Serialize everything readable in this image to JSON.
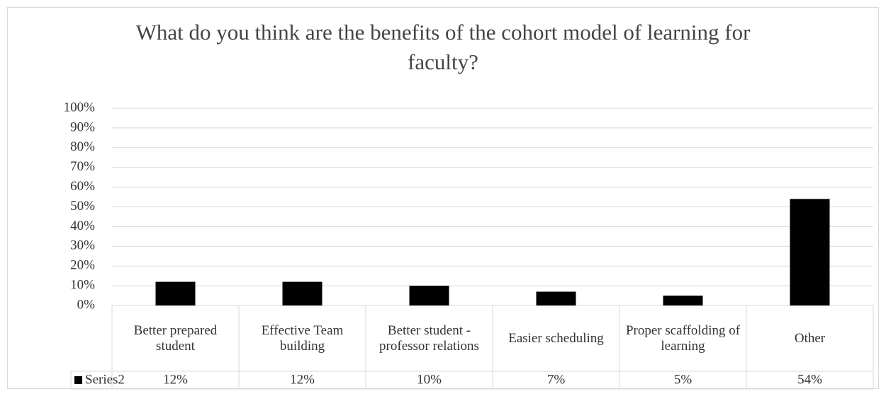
{
  "chart_data": {
    "type": "bar",
    "title": "What do you think are the benefits of the cohort model of learning for faculty?",
    "categories": [
      "Better prepared student",
      "Effective Team building",
      "Better student - professor relations",
      "Easier scheduling",
      "Proper scaffolding of learning",
      "Other"
    ],
    "series": [
      {
        "name": "Series2",
        "color": "#000000",
        "values": [
          12,
          12,
          10,
          7,
          5,
          54
        ],
        "value_labels": [
          "12%",
          "12%",
          "10%",
          "7%",
          "5%",
          "54%"
        ]
      }
    ],
    "ylim": [
      0,
      100
    ],
    "yticks": [
      {
        "value": 0,
        "label": "0%"
      },
      {
        "value": 10,
        "label": "10%"
      },
      {
        "value": 20,
        "label": "20%"
      },
      {
        "value": 30,
        "label": "30%"
      },
      {
        "value": 40,
        "label": "40%"
      },
      {
        "value": 50,
        "label": "50%"
      },
      {
        "value": 60,
        "label": "60%"
      },
      {
        "value": 70,
        "label": "70%"
      },
      {
        "value": 80,
        "label": "80%"
      },
      {
        "value": 90,
        "label": "90%"
      },
      {
        "value": 100,
        "label": "100%"
      }
    ],
    "grid": true
  }
}
